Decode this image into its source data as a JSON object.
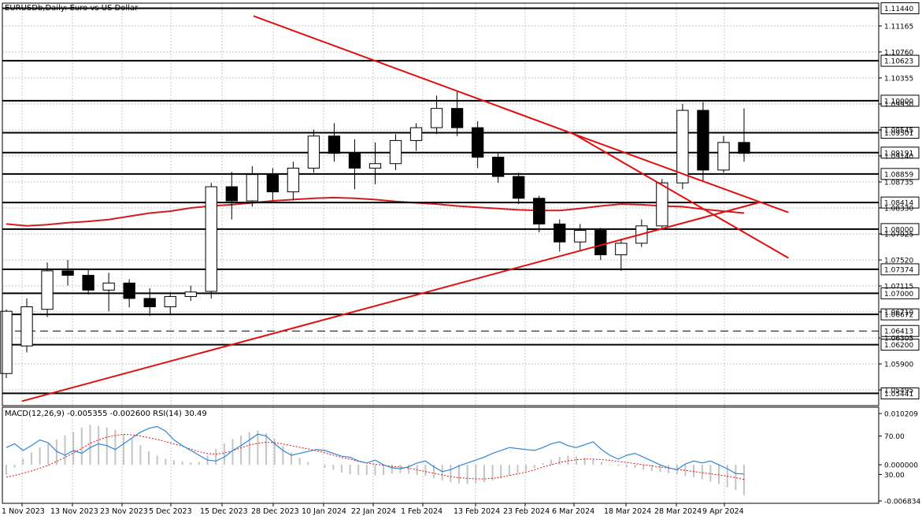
{
  "chart_data": [
    {
      "type": "candlestick",
      "title": "EURUSDb,Daily:  Euro vs US Dollar",
      "ylim": [
        1.0525,
        1.1152
      ],
      "grid": true,
      "colors": {
        "candle": "#000000",
        "trendline": "#e01010",
        "ma": "#d21c1c"
      },
      "y_tick_labels": [
        "1.11165",
        "1.10760",
        "1.10355",
        "1.09950",
        "1.09545",
        "1.09140",
        "1.08735",
        "1.08330",
        "1.07925",
        "1.07520",
        "1.07115",
        "1.06710",
        "1.06305",
        "1.05900",
        "1.05495"
      ],
      "x_tick_labels": [
        "1 Nov 2023",
        "13 Nov 2023",
        "23 Nov 2023",
        "5 Dec 2023",
        "15 Dec 2023",
        "28 Dec 2023",
        "10 Jan 2024",
        "22 Jan 2024",
        "1 Feb 2024",
        "13 Feb 2024",
        "23 Feb 2024",
        "6 Mar 2024",
        "18 Mar 2024",
        "28 Mar 2024",
        "9 Apr 2024"
      ],
      "levels": [
        {
          "label": "1.11440",
          "value": 1.1144,
          "style": "solid",
          "weight": "bold"
        },
        {
          "label": "1.10623",
          "value": 1.10623,
          "style": "solid",
          "weight": "bold"
        },
        {
          "label": "1.10000",
          "value": 1.1,
          "style": "solid",
          "weight": "bold"
        },
        {
          "label": "1.09501",
          "value": 1.09501,
          "style": "solid",
          "weight": "bold"
        },
        {
          "label": "1.09191",
          "value": 1.09191,
          "style": "solid",
          "weight": "bold"
        },
        {
          "label": "1.08859",
          "value": 1.08859,
          "style": "solid",
          "weight": "bold"
        },
        {
          "label": "1.08414",
          "value": 1.08414,
          "style": "solid",
          "weight": "bold"
        },
        {
          "label": "1.08000",
          "value": 1.08,
          "style": "solid",
          "weight": "bold"
        },
        {
          "label": "1.07374",
          "value": 1.07374,
          "style": "solid",
          "weight": "bold"
        },
        {
          "label": "1.07000",
          "value": 1.07,
          "style": "solid",
          "weight": "bold"
        },
        {
          "label": "1.06672",
          "value": 1.06672,
          "style": "solid",
          "weight": "bold"
        },
        {
          "label": "1.06413",
          "value": 1.06413,
          "style": "dashed",
          "weight": "normal"
        },
        {
          "label": "1.06200",
          "value": 1.062,
          "style": "solid",
          "weight": "bold"
        },
        {
          "label": "1.05441",
          "value": 1.05441,
          "style": "solid",
          "weight": "bold"
        }
      ],
      "trendlines": [
        {
          "from": [
            "23 Dec 2023",
            1.1132
          ],
          "to": [
            "6 Mar 2024",
            1.0948
          ]
        },
        {
          "from": [
            "6 Mar 2024",
            1.0948
          ],
          "to": [
            "25 Apr 2024",
            1.0826
          ]
        },
        {
          "from": [
            "6 Mar 2024",
            1.0948
          ],
          "to": [
            "25 Apr 2024",
            1.0755
          ]
        },
        {
          "from": [
            "1 Nov 2023",
            1.0532
          ],
          "to": [
            "18 Apr 2024",
            1.0842
          ]
        }
      ],
      "moving_average": [
        1.0808,
        1.0805,
        1.0807,
        1.081,
        1.0812,
        1.0815,
        1.082,
        1.0825,
        1.0828,
        1.0833,
        1.0836,
        1.0838,
        1.0841,
        1.0844,
        1.0846,
        1.0848,
        1.0849,
        1.0848,
        1.0846,
        1.0843,
        1.0841,
        1.0839,
        1.0836,
        1.0834,
        1.0832,
        1.083,
        1.0829,
        1.0829,
        1.0832,
        1.0836,
        1.0839,
        1.0838,
        1.0836,
        1.0835,
        1.0831,
        1.0828,
        1.0825
      ],
      "candles": [
        {
          "o": 1.0575,
          "h": 1.0675,
          "l": 1.0568,
          "c": 1.0672
        },
        {
          "o": 1.0618,
          "h": 1.0692,
          "l": 1.0608,
          "c": 1.0679
        },
        {
          "o": 1.0675,
          "h": 1.0748,
          "l": 1.0663,
          "c": 1.0735
        },
        {
          "o": 1.0735,
          "h": 1.0752,
          "l": 1.0712,
          "c": 1.0728
        },
        {
          "o": 1.0728,
          "h": 1.0738,
          "l": 1.0698,
          "c": 1.0705
        },
        {
          "o": 1.0705,
          "h": 1.0732,
          "l": 1.0672,
          "c": 1.0716
        },
        {
          "o": 1.0716,
          "h": 1.0722,
          "l": 1.0678,
          "c": 1.0692
        },
        {
          "o": 1.0692,
          "h": 1.0708,
          "l": 1.0665,
          "c": 1.0679
        },
        {
          "o": 1.0679,
          "h": 1.0702,
          "l": 1.0668,
          "c": 1.0695
        },
        {
          "o": 1.0695,
          "h": 1.0712,
          "l": 1.0688,
          "c": 1.0702
        },
        {
          "o": 1.0703,
          "h": 1.0872,
          "l": 1.0692,
          "c": 1.0866
        },
        {
          "o": 1.0866,
          "h": 1.0889,
          "l": 1.0815,
          "c": 1.0844
        },
        {
          "o": 1.0844,
          "h": 1.0898,
          "l": 1.0835,
          "c": 1.0885
        },
        {
          "o": 1.0885,
          "h": 1.0895,
          "l": 1.0845,
          "c": 1.0858
        },
        {
          "o": 1.0858,
          "h": 1.0905,
          "l": 1.0845,
          "c": 1.0895
        },
        {
          "o": 1.0895,
          "h": 1.0955,
          "l": 1.0888,
          "c": 1.0945
        },
        {
          "o": 1.0945,
          "h": 1.0965,
          "l": 1.0905,
          "c": 1.0918
        },
        {
          "o": 1.0918,
          "h": 1.094,
          "l": 1.0862,
          "c": 1.0895
        },
        {
          "o": 1.0895,
          "h": 1.0935,
          "l": 1.087,
          "c": 1.0902
        },
        {
          "o": 1.0902,
          "h": 1.0948,
          "l": 1.0892,
          "c": 1.0938
        },
        {
          "o": 1.0938,
          "h": 1.0965,
          "l": 1.0922,
          "c": 1.0958
        },
        {
          "o": 1.0958,
          "h": 1.1008,
          "l": 1.0948,
          "c": 1.0988
        },
        {
          "o": 1.0988,
          "h": 1.1015,
          "l": 1.0945,
          "c": 1.0958
        },
        {
          "o": 1.0958,
          "h": 1.0968,
          "l": 1.0895,
          "c": 1.0912
        },
        {
          "o": 1.0912,
          "h": 1.0918,
          "l": 1.0872,
          "c": 1.0882
        },
        {
          "o": 1.0882,
          "h": 1.0888,
          "l": 1.0839,
          "c": 1.0848
        },
        {
          "o": 1.0848,
          "h": 1.0852,
          "l": 1.0795,
          "c": 1.0808
        },
        {
          "o": 1.0808,
          "h": 1.0815,
          "l": 1.0765,
          "c": 1.078
        },
        {
          "o": 1.078,
          "h": 1.0808,
          "l": 1.0765,
          "c": 1.0798
        },
        {
          "o": 1.0798,
          "h": 1.0802,
          "l": 1.0752,
          "c": 1.076
        },
        {
          "o": 1.076,
          "h": 1.0785,
          "l": 1.0735,
          "c": 1.0778
        },
        {
          "o": 1.0778,
          "h": 1.0815,
          "l": 1.0772,
          "c": 1.0805
        },
        {
          "o": 1.0805,
          "h": 1.0878,
          "l": 1.08,
          "c": 1.0872
        },
        {
          "o": 1.0872,
          "h": 1.0995,
          "l": 1.0862,
          "c": 1.0985
        },
        {
          "o": 1.0985,
          "h": 1.0998,
          "l": 1.0875,
          "c": 1.0892
        },
        {
          "o": 1.0892,
          "h": 1.0945,
          "l": 1.0888,
          "c": 1.0935
        },
        {
          "o": 1.0935,
          "h": 1.0988,
          "l": 1.0905,
          "c": 1.0918
        }
      ],
      "macd_panel": {
        "label": "MACD(12,26,9) -0.005355 -0.002600 RSI(14) 30.49",
        "right_labels": [
          "0.010209",
          "70.00",
          "0.000000",
          "30.00",
          "-0.006834"
        ],
        "macd_range": [
          -0.006834,
          0.010209
        ],
        "rsi_range": [
          0,
          100
        ],
        "macd_hist": [
          -0.0018,
          -0.0005,
          0.0011,
          0.0022,
          0.0031,
          0.0038,
          0.0045,
          0.0052,
          0.0058,
          0.0066,
          0.0071,
          0.0069,
          0.0066,
          0.0062,
          0.0055,
          0.0046,
          0.0035,
          0.0024,
          0.0016,
          0.0011,
          0.0008,
          0.0006,
          0.0004,
          0.0005,
          0.0016,
          0.0028,
          0.0038,
          0.0046,
          0.0052,
          0.0058,
          0.0061,
          0.0056,
          0.0046,
          0.0034,
          0.0022,
          0.0012,
          0.0005,
          0.0,
          -0.0005,
          -0.0009,
          -0.0014,
          -0.0017,
          -0.0018,
          -0.0018,
          -0.0019,
          -0.0018,
          -0.0016,
          -0.0015,
          -0.0016,
          -0.0018,
          -0.002,
          -0.0024,
          -0.0028,
          -0.0031,
          -0.0033,
          -0.0034,
          -0.0033,
          -0.0031,
          -0.0028,
          -0.0024,
          -0.0019,
          -0.0015,
          -0.0011,
          -0.0006,
          0.0003,
          0.0009,
          0.0014,
          0.0016,
          0.0015,
          0.0013,
          0.001,
          0.0005,
          0.0001,
          -0.0002,
          -0.0004,
          -0.0006,
          -0.0009,
          -0.0011,
          -0.0013,
          -0.0015,
          -0.0017,
          -0.002,
          -0.0022,
          -0.0026,
          -0.003,
          -0.0034,
          -0.004,
          -0.0045,
          -0.0054
        ],
        "macd_signal": [
          -0.0022,
          -0.0019,
          -0.0015,
          -0.0011,
          -0.0006,
          -0.0001,
          0.0006,
          0.0013,
          0.0021,
          0.0029,
          0.0038,
          0.0044,
          0.0049,
          0.0052,
          0.0054,
          0.0053,
          0.0051,
          0.0048,
          0.0045,
          0.0041,
          0.0037,
          0.0033,
          0.0028,
          0.0023,
          0.002,
          0.0019,
          0.0021,
          0.0025,
          0.003,
          0.0035,
          0.0038,
          0.004,
          0.0039,
          0.0037,
          0.0034,
          0.0031,
          0.0028,
          0.0025,
          0.0021,
          0.0017,
          0.0013,
          0.001,
          0.0006,
          0.0003,
          0.0001,
          -0.0001,
          -0.0003,
          -0.0004,
          -0.0006,
          -0.0009,
          -0.0012,
          -0.0015,
          -0.0018,
          -0.0021,
          -0.0023,
          -0.0024,
          -0.0025,
          -0.0025,
          -0.0024,
          -0.0022,
          -0.0019,
          -0.0016,
          -0.0013,
          -0.0009,
          -0.0004,
          0.0,
          0.0004,
          0.0007,
          0.0009,
          0.001,
          0.001,
          0.0009,
          0.0008,
          0.0006,
          0.0004,
          0.0002,
          0.0,
          -0.0002,
          -0.0004,
          -0.0006,
          -0.0008,
          -0.001,
          -0.0012,
          -0.0014,
          -0.0016,
          -0.0018,
          -0.002,
          -0.0023,
          -0.0026
        ],
        "rsi": [
          58,
          62,
          55,
          60,
          66,
          63,
          54,
          50,
          55,
          52,
          58,
          62,
          60,
          56,
          62,
          68,
          74,
          78,
          80,
          75,
          66,
          60,
          55,
          50,
          45,
          44,
          48,
          55,
          60,
          66,
          72,
          70,
          62,
          55,
          50,
          52,
          54,
          56,
          55,
          52,
          49,
          48,
          44,
          42,
          45,
          40,
          37,
          36,
          38,
          42,
          44,
          38,
          33,
          35,
          39,
          42,
          45,
          48,
          52,
          55,
          58,
          57,
          56,
          55,
          58,
          62,
          64,
          60,
          58,
          61,
          64,
          56,
          50,
          46,
          50,
          52,
          48,
          44,
          40,
          37,
          35,
          41,
          44,
          42,
          44,
          40,
          36,
          31,
          30.5
        ]
      }
    }
  ]
}
